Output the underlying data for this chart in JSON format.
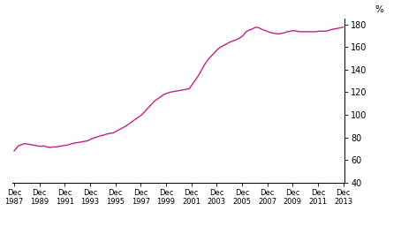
{
  "title": "",
  "ylabel": "%",
  "ylim": [
    40,
    185
  ],
  "yticks": [
    40,
    60,
    80,
    100,
    120,
    140,
    160,
    180
  ],
  "line_color": "#c0228a",
  "line_width": 1.0,
  "background_color": "#ffffff",
  "xtick_labels": [
    "Dec\n1987",
    "Dec\n1989",
    "Dec\n1991",
    "Dec\n1993",
    "Dec\n1995",
    "Dec\n1997",
    "Dec\n1999",
    "Dec\n2001",
    "Dec\n2003",
    "Dec\n2005",
    "Dec\n2007",
    "Dec\n2009",
    "Dec\n2011",
    "Dec\n2013"
  ],
  "x_years": [
    1987,
    1989,
    1991,
    1993,
    1995,
    1997,
    1999,
    2001,
    2003,
    2005,
    2007,
    2009,
    2011,
    2013
  ],
  "data": [
    [
      1987.917,
      68.0
    ],
    [
      1988.25,
      72.5
    ],
    [
      1988.5,
      73.5
    ],
    [
      1988.75,
      74.5
    ],
    [
      1989.0,
      74.0
    ],
    [
      1989.25,
      73.5
    ],
    [
      1989.5,
      73.0
    ],
    [
      1989.75,
      72.5
    ],
    [
      1990.0,
      72.0
    ],
    [
      1990.25,
      72.5
    ],
    [
      1990.5,
      71.5
    ],
    [
      1990.75,
      71.0
    ],
    [
      1991.0,
      71.5
    ],
    [
      1991.25,
      71.5
    ],
    [
      1991.5,
      72.0
    ],
    [
      1991.75,
      72.5
    ],
    [
      1992.0,
      73.0
    ],
    [
      1992.25,
      73.5
    ],
    [
      1992.5,
      74.5
    ],
    [
      1992.75,
      75.0
    ],
    [
      1993.0,
      75.5
    ],
    [
      1993.25,
      76.0
    ],
    [
      1993.5,
      76.5
    ],
    [
      1993.75,
      77.0
    ],
    [
      1994.0,
      78.5
    ],
    [
      1994.25,
      79.5
    ],
    [
      1994.5,
      80.5
    ],
    [
      1994.75,
      81.5
    ],
    [
      1995.0,
      82.0
    ],
    [
      1995.25,
      83.0
    ],
    [
      1995.5,
      83.5
    ],
    [
      1995.75,
      84.0
    ],
    [
      1996.0,
      85.5
    ],
    [
      1996.25,
      87.0
    ],
    [
      1996.5,
      88.5
    ],
    [
      1996.75,
      90.0
    ],
    [
      1997.0,
      92.0
    ],
    [
      1997.25,
      94.0
    ],
    [
      1997.5,
      96.0
    ],
    [
      1997.75,
      98.0
    ],
    [
      1998.0,
      100.0
    ],
    [
      1998.25,
      103.0
    ],
    [
      1998.5,
      106.0
    ],
    [
      1998.75,
      109.0
    ],
    [
      1999.0,
      112.0
    ],
    [
      1999.25,
      114.0
    ],
    [
      1999.5,
      116.0
    ],
    [
      1999.75,
      118.0
    ],
    [
      2000.0,
      119.0
    ],
    [
      2000.25,
      120.0
    ],
    [
      2000.5,
      120.5
    ],
    [
      2000.75,
      121.0
    ],
    [
      2001.0,
      121.5
    ],
    [
      2001.25,
      122.0
    ],
    [
      2001.5,
      122.5
    ],
    [
      2001.75,
      123.0
    ],
    [
      2002.0,
      127.0
    ],
    [
      2002.25,
      131.0
    ],
    [
      2002.5,
      135.0
    ],
    [
      2002.75,
      140.0
    ],
    [
      2003.0,
      145.0
    ],
    [
      2003.25,
      149.0
    ],
    [
      2003.5,
      152.0
    ],
    [
      2003.75,
      155.0
    ],
    [
      2004.0,
      158.0
    ],
    [
      2004.25,
      160.0
    ],
    [
      2004.5,
      161.5
    ],
    [
      2004.75,
      163.0
    ],
    [
      2005.0,
      164.5
    ],
    [
      2005.25,
      165.5
    ],
    [
      2005.5,
      166.5
    ],
    [
      2005.75,
      168.0
    ],
    [
      2006.0,
      170.0
    ],
    [
      2006.25,
      173.5
    ],
    [
      2006.5,
      175.0
    ],
    [
      2006.75,
      176.0
    ],
    [
      2007.0,
      177.5
    ],
    [
      2007.25,
      177.0
    ],
    [
      2007.5,
      175.5
    ],
    [
      2007.75,
      174.5
    ],
    [
      2008.0,
      173.5
    ],
    [
      2008.25,
      172.5
    ],
    [
      2008.5,
      172.0
    ],
    [
      2008.75,
      171.5
    ],
    [
      2009.0,
      172.0
    ],
    [
      2009.25,
      172.5
    ],
    [
      2009.5,
      173.5
    ],
    [
      2009.75,
      174.0
    ],
    [
      2010.0,
      174.5
    ],
    [
      2010.25,
      174.0
    ],
    [
      2010.5,
      173.5
    ],
    [
      2010.75,
      173.5
    ],
    [
      2011.0,
      173.5
    ],
    [
      2011.25,
      173.5
    ],
    [
      2011.5,
      173.5
    ],
    [
      2011.75,
      173.5
    ],
    [
      2012.0,
      174.0
    ],
    [
      2012.25,
      174.0
    ],
    [
      2012.5,
      174.0
    ],
    [
      2012.75,
      174.5
    ],
    [
      2013.0,
      175.5
    ],
    [
      2013.25,
      176.0
    ],
    [
      2013.5,
      176.5
    ],
    [
      2013.917,
      177.5
    ]
  ]
}
